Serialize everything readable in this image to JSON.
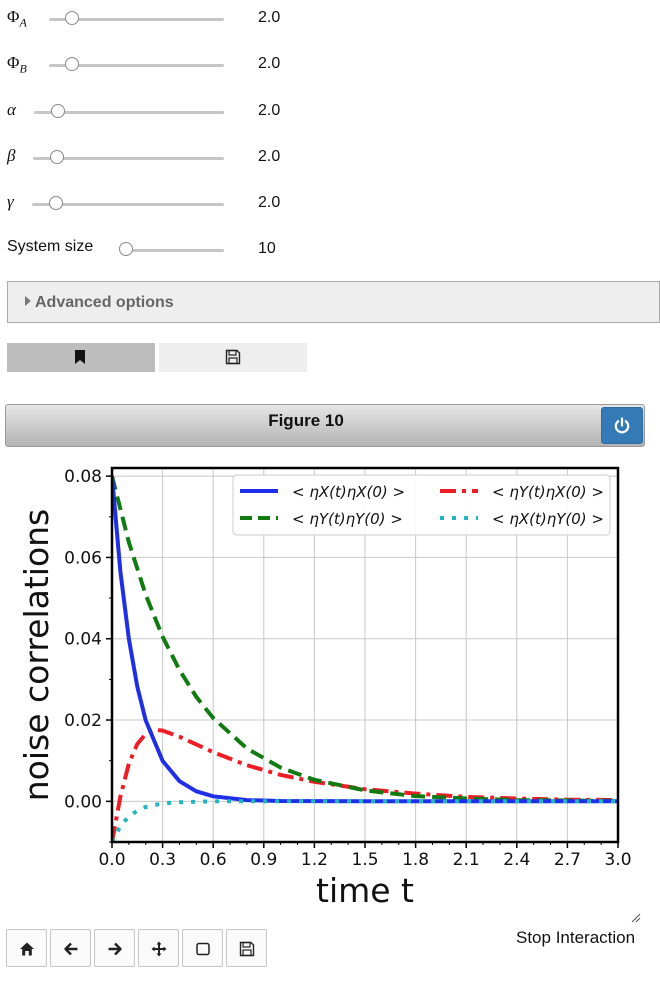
{
  "sliders": [
    {
      "name": "Φ",
      "sub": "A",
      "value": "2.0",
      "fraction": 0.1
    },
    {
      "name": "Φ",
      "sub": "B",
      "value": "2.0",
      "fraction": 0.1
    },
    {
      "name": "α",
      "sub": "",
      "value": "2.0",
      "fraction": 0.1
    },
    {
      "name": "β",
      "sub": "",
      "value": "2.0",
      "fraction": 0.1
    },
    {
      "name": "γ",
      "sub": "",
      "value": "2.0",
      "fraction": 0.1
    }
  ],
  "system_size": {
    "label": "System size",
    "value": "10",
    "fraction": 0.0
  },
  "advanced": {
    "title": "Advanced options"
  },
  "figure": {
    "title": "Figure 10"
  },
  "stop_label": "Stop Interaction",
  "icons": {
    "bookmark": "bookmark-icon",
    "save": "save-icon",
    "power": "power-icon",
    "home": "home-icon",
    "back": "arrow-left-icon",
    "forward": "arrow-right-icon",
    "pan": "move-icon",
    "zoom": "zoom-rect-icon",
    "download": "save-icon"
  },
  "colors": {
    "accent": "#337ab7"
  },
  "chart_data": {
    "type": "line",
    "title": "",
    "xlabel": "time t",
    "ylabel": "noise correlations",
    "xlim": [
      0,
      3.0
    ],
    "ylim": [
      -0.01,
      0.082
    ],
    "xticks": [
      "0.0",
      "0.3",
      "0.6",
      "0.9",
      "1.2",
      "1.5",
      "1.8",
      "2.1",
      "2.4",
      "2.7",
      "3.0"
    ],
    "yticks": [
      "0.00",
      "0.02",
      "0.04",
      "0.06",
      "0.08"
    ],
    "grid": true,
    "legend_placement": "top-right",
    "series": [
      {
        "name": "< ηX(t)ηX(0) >",
        "color": "#1f2ee8",
        "style": "solid",
        "x": [
          0,
          0.05,
          0.1,
          0.15,
          0.2,
          0.3,
          0.4,
          0.5,
          0.6,
          0.8,
          1.0,
          1.5,
          2.0,
          2.5,
          3.0
        ],
        "y": [
          0.08,
          0.0565,
          0.0399,
          0.0282,
          0.0199,
          0.00994,
          0.00496,
          0.00248,
          0.00124,
          0.00031,
          8e-05,
          0.0,
          0.0,
          0.0,
          0.0
        ]
      },
      {
        "name": "< ηY(t)ηX(0) >",
        "color": "#ee1c25",
        "style": "dashdot",
        "x": [
          0,
          0.05,
          0.1,
          0.15,
          0.2,
          0.25,
          0.3,
          0.4,
          0.5,
          0.6,
          0.8,
          1.0,
          1.2,
          1.5,
          1.8,
          2.1,
          2.4,
          2.7,
          3.0
        ],
        "y": [
          -0.01,
          0.0012,
          0.0093,
          0.0141,
          0.0166,
          0.0176,
          0.0174,
          0.0159,
          0.014,
          0.0121,
          0.0089,
          0.0065,
          0.0048,
          0.003,
          0.0019,
          0.0011,
          0.0007,
          0.0004,
          0.0003
        ]
      },
      {
        "name": "< ηY(t)ηY(0) >",
        "color": "#117b11",
        "style": "dashed",
        "x": [
          0,
          0.1,
          0.2,
          0.3,
          0.4,
          0.5,
          0.6,
          0.8,
          1.0,
          1.2,
          1.5,
          1.8,
          2.1,
          2.4,
          2.7,
          3.0
        ],
        "y": [
          0.08,
          0.0637,
          0.0508,
          0.0405,
          0.0323,
          0.0257,
          0.0205,
          0.013,
          0.0083,
          0.0053,
          0.0027,
          0.0013,
          0.0007,
          0.0003,
          0.0002,
          0.0001
        ]
      },
      {
        "name": "< ηX(t)ηY(0) >",
        "color": "#22b5c2",
        "style": "dotted",
        "x": [
          0,
          0.05,
          0.1,
          0.15,
          0.2,
          0.3,
          0.4,
          0.5,
          0.6,
          0.8,
          1.0,
          1.5,
          2.0,
          2.5,
          3.0
        ],
        "y": [
          -0.01,
          -0.0061,
          -0.0037,
          -0.0023,
          -0.0014,
          -0.0005,
          -0.0002,
          -0.0001,
          0.0,
          0.0,
          0.0,
          0.0,
          0.0,
          0.0,
          0.0
        ]
      }
    ]
  }
}
